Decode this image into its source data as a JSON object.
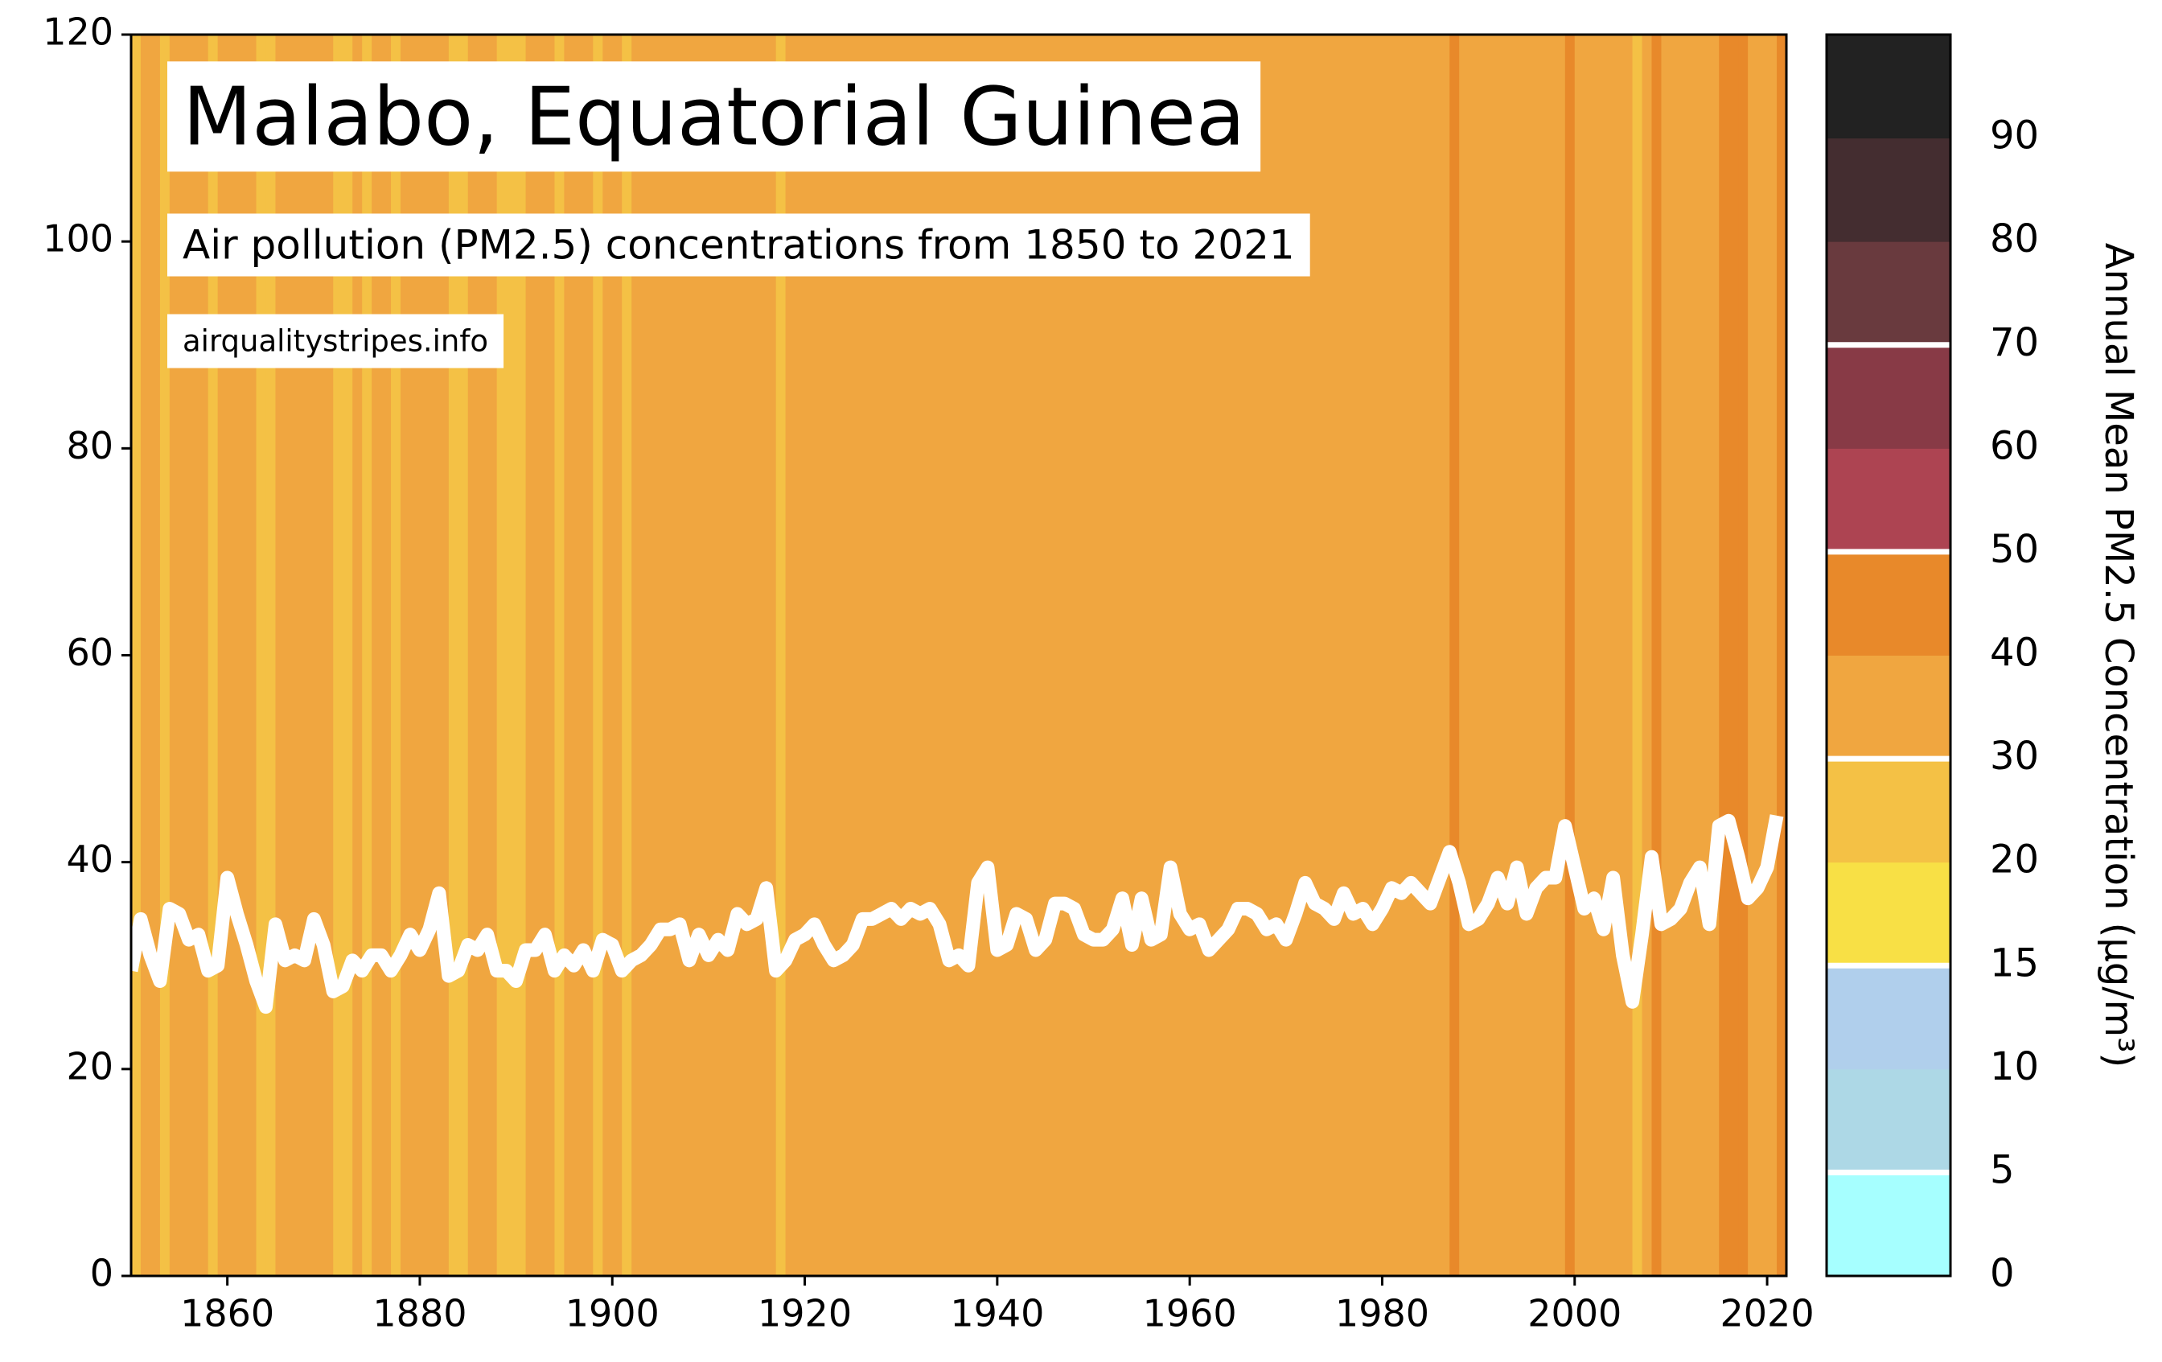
{
  "chart_data": {
    "type": "stripes",
    "title": "Malabo, Equatorial Guinea",
    "subtitle": "Air pollution (PM2.5) concentrations from 1850 to 2021",
    "source": "airqualitystripes.info",
    "line_color": "#ffffff",
    "x": [
      1850,
      1851,
      1852,
      1853,
      1854,
      1855,
      1856,
      1857,
      1858,
      1859,
      1860,
      1861,
      1862,
      1863,
      1864,
      1865,
      1866,
      1867,
      1868,
      1869,
      1870,
      1871,
      1872,
      1873,
      1874,
      1875,
      1876,
      1877,
      1878,
      1879,
      1880,
      1881,
      1882,
      1883,
      1884,
      1885,
      1886,
      1887,
      1888,
      1889,
      1890,
      1891,
      1892,
      1893,
      1894,
      1895,
      1896,
      1897,
      1898,
      1899,
      1900,
      1901,
      1902,
      1903,
      1904,
      1905,
      1906,
      1907,
      1908,
      1909,
      1910,
      1911,
      1912,
      1913,
      1914,
      1915,
      1916,
      1917,
      1918,
      1919,
      1920,
      1921,
      1922,
      1923,
      1924,
      1925,
      1926,
      1927,
      1928,
      1929,
      1930,
      1931,
      1932,
      1933,
      1934,
      1935,
      1936,
      1937,
      1938,
      1939,
      1940,
      1941,
      1942,
      1943,
      1944,
      1945,
      1946,
      1947,
      1948,
      1949,
      1950,
      1951,
      1952,
      1953,
      1954,
      1955,
      1956,
      1957,
      1958,
      1959,
      1960,
      1961,
      1962,
      1963,
      1964,
      1965,
      1966,
      1967,
      1968,
      1969,
      1970,
      1971,
      1972,
      1973,
      1974,
      1975,
      1976,
      1977,
      1978,
      1979,
      1980,
      1981,
      1982,
      1983,
      1984,
      1985,
      1986,
      1987,
      1988,
      1989,
      1990,
      1991,
      1992,
      1993,
      1994,
      1995,
      1996,
      1997,
      1998,
      1999,
      2000,
      2001,
      2002,
      2003,
      2004,
      2005,
      2006,
      2007,
      2008,
      2009,
      2010,
      2011,
      2012,
      2013,
      2014,
      2015,
      2016,
      2017,
      2018,
      2019,
      2020,
      2021
    ],
    "values": [
      29.5,
      34.5,
      31,
      28.5,
      35.5,
      35,
      32.5,
      33,
      29.5,
      30,
      38.5,
      35,
      32,
      28.5,
      26,
      34,
      30.5,
      31,
      30.5,
      34.5,
      32,
      27.5,
      28,
      30.5,
      29.5,
      31,
      31,
      29.5,
      31,
      33,
      31.5,
      33.5,
      37,
      29,
      29.5,
      32,
      31.5,
      33,
      29.5,
      29.5,
      28.5,
      31.5,
      31.5,
      33,
      29.5,
      31,
      30,
      31.5,
      29.5,
      32.5,
      32,
      29.5,
      30.5,
      31,
      32,
      33.5,
      33.5,
      34,
      30.5,
      33,
      31,
      32.5,
      31.5,
      35,
      34,
      34.5,
      37.5,
      29.5,
      30.5,
      32.5,
      33,
      34,
      32,
      30.5,
      31,
      32,
      34.5,
      34.5,
      35,
      35.5,
      34.5,
      35.5,
      35,
      35.5,
      34,
      30.5,
      31,
      30,
      38,
      39.5,
      31.5,
      32,
      35,
      34.5,
      31.5,
      32.5,
      36,
      36,
      35.5,
      33,
      32.5,
      32.5,
      33.5,
      36.5,
      32,
      36.5,
      32.5,
      33,
      39.5,
      35,
      33.5,
      34,
      31.5,
      32.5,
      33.5,
      35.5,
      35.5,
      35,
      33.5,
      34,
      32.5,
      35,
      38,
      36,
      35.5,
      34.5,
      37,
      35,
      35.5,
      34,
      35.5,
      37.5,
      37,
      38,
      37,
      36,
      38.5,
      41,
      38,
      34,
      34.5,
      36,
      38.5,
      36,
      39.5,
      35,
      37.5,
      38.5,
      38.5,
      43.5,
      39.5,
      35.5,
      36.5,
      33.5,
      38.5,
      31,
      26.5,
      33,
      40.5,
      34,
      34.5,
      35.5,
      38,
      39.5,
      34,
      43.5,
      44,
      40.5,
      36.5,
      37.5,
      39.5,
      44.5
    ],
    "xlim": [
      1850,
      2022
    ],
    "xticks": [
      1860,
      1880,
      1900,
      1920,
      1940,
      1960,
      1980,
      2000,
      2020
    ],
    "ylim": [
      0,
      120
    ],
    "yticks": [
      0,
      20,
      40,
      60,
      80,
      100,
      120
    ],
    "colorbar": {
      "label": "Annual Mean PM2.5 Concentration (µg/m³)",
      "ticks": [
        0,
        5,
        10,
        15,
        20,
        30,
        40,
        50,
        60,
        70,
        80,
        90
      ],
      "colors": [
        "#a6ffff",
        "#add8e6",
        "#b0cfec",
        "#f8e045",
        "#f4c145",
        "#f0a640",
        "#e8892a",
        "#ad4452",
        "#883a46",
        "#693a3e",
        "#442d30",
        "#222222"
      ],
      "highlight": [
        5,
        15,
        30,
        50,
        70
      ]
    }
  }
}
